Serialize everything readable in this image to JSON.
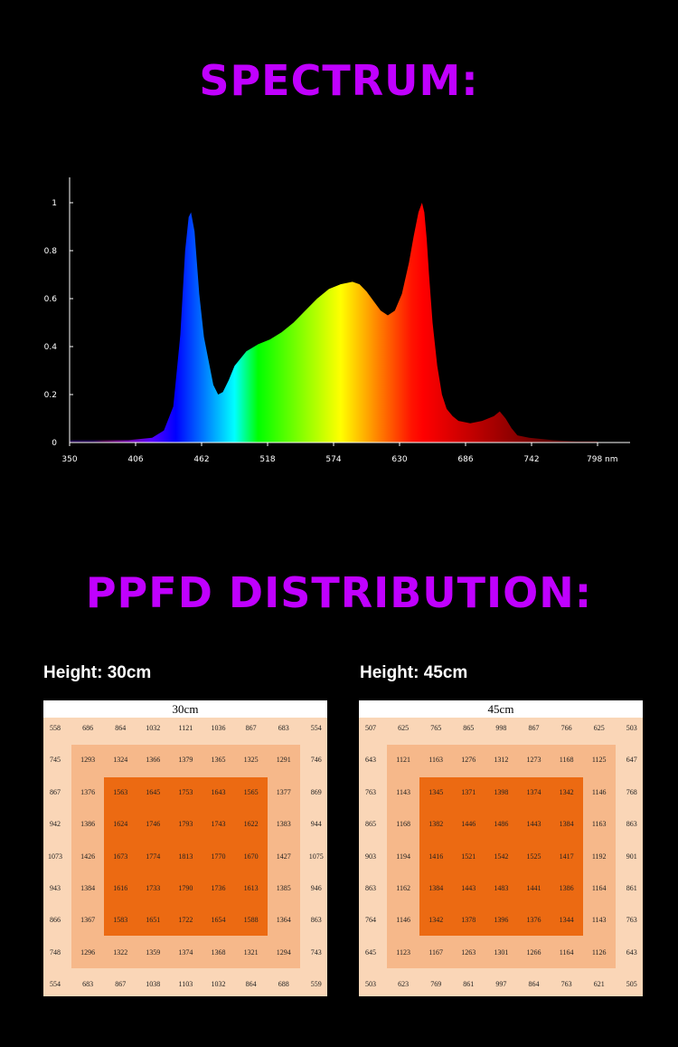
{
  "headings": {
    "spectrum": "SPECTRUM:",
    "ppfd": "PPFD DISTRIBUTION:"
  },
  "chart_data": [
    {
      "type": "area",
      "xlabel": "nm",
      "x_ticks": [
        "350",
        "406",
        "462",
        "518",
        "574",
        "630",
        "686",
        "742",
        "798 nm"
      ],
      "y_ticks": [
        "0",
        "0.2",
        "0.4",
        "0.6",
        "0.8",
        "1"
      ],
      "xlim": [
        350,
        810
      ],
      "ylim": [
        0,
        1.1
      ],
      "grid": false,
      "series": [
        {
          "x": [
            350,
            400,
            420,
            430,
            438,
            444,
            448,
            451,
            453,
            456,
            460,
            464,
            468,
            472,
            476,
            480,
            485,
            490,
            500,
            510,
            520,
            530,
            540,
            550,
            560,
            570,
            580,
            590,
            596,
            602,
            608,
            614,
            620,
            626,
            632,
            638,
            642,
            646,
            649,
            651,
            653,
            655,
            658,
            662,
            666,
            670,
            675,
            680,
            690,
            700,
            710,
            715,
            720,
            725,
            730,
            740,
            760,
            780,
            798
          ],
          "values": [
            0.01,
            0.01,
            0.02,
            0.05,
            0.15,
            0.45,
            0.8,
            0.94,
            0.96,
            0.88,
            0.62,
            0.44,
            0.34,
            0.24,
            0.2,
            0.21,
            0.26,
            0.32,
            0.38,
            0.41,
            0.43,
            0.46,
            0.5,
            0.55,
            0.6,
            0.64,
            0.66,
            0.67,
            0.66,
            0.63,
            0.59,
            0.55,
            0.53,
            0.55,
            0.62,
            0.75,
            0.86,
            0.96,
            1.0,
            0.96,
            0.85,
            0.7,
            0.5,
            0.32,
            0.2,
            0.14,
            0.11,
            0.09,
            0.08,
            0.09,
            0.11,
            0.13,
            0.1,
            0.06,
            0.03,
            0.02,
            0.01,
            0.005,
            0.005
          ]
        }
      ]
    },
    {
      "type": "heatmap",
      "label": "Height: 30cm",
      "title": "30cm",
      "rows": [
        [
          558,
          686,
          864,
          1032,
          1121,
          1036,
          867,
          683,
          554
        ],
        [
          745,
          1293,
          1324,
          1366,
          1379,
          1365,
          1325,
          1291,
          746
        ],
        [
          867,
          1376,
          1563,
          1645,
          1753,
          1643,
          1565,
          1377,
          869
        ],
        [
          942,
          1386,
          1624,
          1746,
          1793,
          1743,
          1622,
          1383,
          944
        ],
        [
          1073,
          1426,
          1673,
          1774,
          1813,
          1770,
          1670,
          1427,
          1075
        ],
        [
          943,
          1384,
          1616,
          1733,
          1790,
          1736,
          1613,
          1385,
          946
        ],
        [
          866,
          1367,
          1583,
          1651,
          1722,
          1654,
          1588,
          1364,
          863
        ],
        [
          748,
          1296,
          1322,
          1359,
          1374,
          1368,
          1321,
          1294,
          743
        ],
        [
          554,
          683,
          867,
          1038,
          1103,
          1032,
          864,
          688,
          559
        ]
      ]
    },
    {
      "type": "heatmap",
      "label": "Height: 45cm",
      "title": "45cm",
      "rows": [
        [
          507,
          625,
          765,
          865,
          998,
          867,
          766,
          625,
          503
        ],
        [
          643,
          1121,
          1163,
          1276,
          1312,
          1273,
          1168,
          1125,
          647
        ],
        [
          763,
          1143,
          1345,
          1371,
          1398,
          1374,
          1342,
          1146,
          768
        ],
        [
          865,
          1168,
          1382,
          1446,
          1486,
          1443,
          1384,
          1163,
          863
        ],
        [
          903,
          1194,
          1416,
          1521,
          1542,
          1525,
          1417,
          1192,
          901
        ],
        [
          863,
          1162,
          1384,
          1443,
          1483,
          1441,
          1386,
          1164,
          861
        ],
        [
          764,
          1146,
          1342,
          1378,
          1396,
          1376,
          1344,
          1143,
          763
        ],
        [
          645,
          1123,
          1167,
          1263,
          1301,
          1266,
          1164,
          1126,
          643
        ],
        [
          503,
          623,
          769,
          861,
          997,
          864,
          763,
          621,
          505
        ]
      ]
    }
  ]
}
